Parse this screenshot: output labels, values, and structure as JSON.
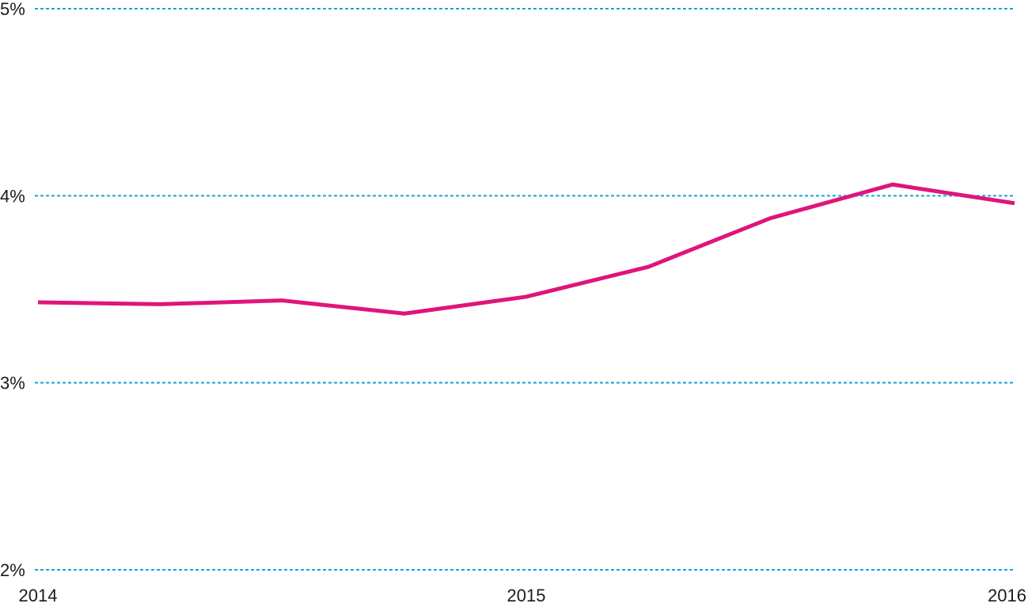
{
  "chart_data": {
    "type": "line",
    "categories": [
      "2014",
      null,
      null,
      null,
      "2015",
      null,
      null,
      null,
      "2016"
    ],
    "values": [
      3.43,
      3.42,
      3.44,
      3.37,
      3.46,
      3.62,
      3.88,
      4.06,
      3.96
    ],
    "color": "#e0147c",
    "grid_color": "#1aa3d9",
    "grid": true,
    "ylim": [
      2,
      5
    ],
    "yticks": [
      {
        "value": 2,
        "label": "2%"
      },
      {
        "value": 3,
        "label": "3%"
      },
      {
        "value": 4,
        "label": "4%"
      },
      {
        "value": 5,
        "label": "5%"
      }
    ]
  }
}
